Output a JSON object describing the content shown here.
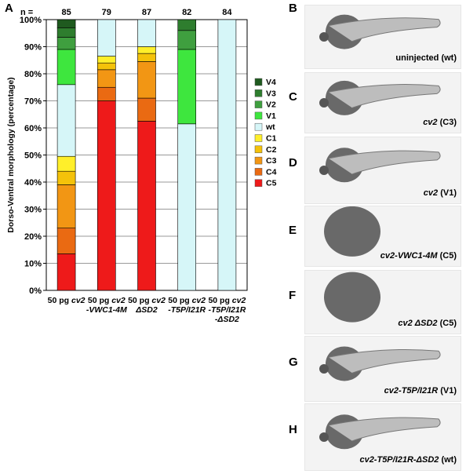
{
  "colors": {
    "V4": "#1f5a1f",
    "V3": "#2e7d2e",
    "V2": "#3f9f3f",
    "V1": "#3ee63e",
    "wt": "#d6f6f8",
    "C1": "#ffef2a",
    "C2": "#f4c20a",
    "C3": "#f29614",
    "C4": "#ea6a12",
    "C5": "#ee1a1a",
    "axis": "#000000",
    "grid": "#999999"
  },
  "chart_data": {
    "type": "bar",
    "stacked": true,
    "panel_label": "A",
    "n_label": "n =",
    "n_values": [
      "85",
      "79",
      "87",
      "82",
      "84"
    ],
    "categories": [
      [
        "50 pg ",
        "cv2",
        "",
        ""
      ],
      [
        "50 pg ",
        "cv2",
        "-VWC1-4M",
        ""
      ],
      [
        "50 pg ",
        "cv2",
        "ΔSD2",
        ""
      ],
      [
        "50 pg ",
        "cv2",
        "-T5P/I21R",
        ""
      ],
      [
        "50 pg ",
        "cv2",
        "-T5P/I21R",
        "-ΔSD2"
      ]
    ],
    "ylabel": "Dorso-Ventral morphology (percentage)",
    "ylim": [
      0,
      100
    ],
    "yticks": [
      "0%",
      "10%",
      "20%",
      "30%",
      "40%",
      "50%",
      "60%",
      "70%",
      "80%",
      "90%",
      "100%"
    ],
    "grid": true,
    "legend_position": "right",
    "legend_order": [
      "V4",
      "V3",
      "V2",
      "V1",
      "wt",
      "C1",
      "C2",
      "C3",
      "C4",
      "C5"
    ],
    "series": [
      {
        "name": "C5",
        "values": [
          13.5,
          70,
          62.5,
          0,
          0
        ]
      },
      {
        "name": "C4",
        "values": [
          9.5,
          5,
          8.5,
          0,
          0
        ]
      },
      {
        "name": "C3",
        "values": [
          16,
          6.5,
          13.5,
          0,
          0
        ]
      },
      {
        "name": "C2",
        "values": [
          5,
          2.5,
          3,
          0,
          0
        ]
      },
      {
        "name": "C1",
        "values": [
          5.5,
          2.5,
          2.5,
          0,
          0
        ]
      },
      {
        "name": "wt",
        "values": [
          26.5,
          13.5,
          10,
          61.5,
          100
        ]
      },
      {
        "name": "V1",
        "values": [
          13,
          0,
          0,
          27.5,
          0
        ]
      },
      {
        "name": "V2",
        "values": [
          4.5,
          0,
          0,
          7,
          0
        ]
      },
      {
        "name": "V3",
        "values": [
          3.5,
          0,
          0,
          4,
          0
        ]
      },
      {
        "name": "V4",
        "values": [
          3,
          0,
          0,
          0,
          0
        ]
      }
    ]
  },
  "panels": [
    {
      "letter": "B",
      "caption": [
        {
          "t": "uninjected (wt)",
          "i": false
        }
      ]
    },
    {
      "letter": "C",
      "caption": [
        {
          "t": "cv2",
          "i": true
        },
        {
          "t": " (C3)",
          "i": false
        }
      ]
    },
    {
      "letter": "D",
      "caption": [
        {
          "t": "cv2",
          "i": true
        },
        {
          "t": " (V1)",
          "i": false
        }
      ]
    },
    {
      "letter": "E",
      "caption": [
        {
          "t": "cv2-VWC1-4M",
          "i": true
        },
        {
          "t": " (C5)",
          "i": false
        }
      ]
    },
    {
      "letter": "F",
      "caption": [
        {
          "t": "cv2 ΔSD2",
          "i": true
        },
        {
          "t": " (C5)",
          "i": false
        }
      ]
    },
    {
      "letter": "G",
      "caption": [
        {
          "t": "cv2-T5P/I21R",
          "i": true
        },
        {
          "t": " (V1)",
          "i": false
        }
      ]
    },
    {
      "letter": "H",
      "caption": [
        {
          "t": "cv2-T5P/I21R-ΔSD2",
          "i": true
        },
        {
          "t": " (wt)",
          "i": false
        }
      ]
    }
  ]
}
